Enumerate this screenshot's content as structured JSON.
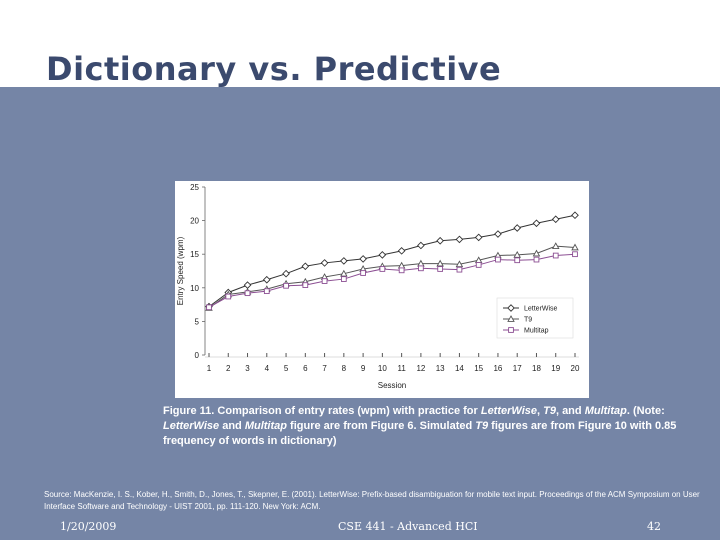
{
  "slide": {
    "title": "Dictionary vs. Predictive",
    "caption_parts": [
      "Figure 11. Comparison of entry rates (wpm) with practice for ",
      "LetterWise",
      ", ",
      "T9",
      ", and ",
      "Multitap",
      ". (Note: ",
      "LetterWise",
      " and ",
      "Multitap",
      " figure are from Figure 6. Simulated ",
      "T9",
      " figures are from Figure 10 with 0.85 frequency of words in dictionary)"
    ],
    "source": "Source: MacKenzie, I. S., Kober, H., Smith, D., Jones, T., Skepner, E. (2001). LetterWise: Prefix-based disambiguation for mobile text input. Proceedings of the ACM Symposium on User Interface Software and Technology - UIST 2001, pp. 111-120. New York: ACM.",
    "footer": {
      "date": "1/20/2009",
      "course": "CSE 441 - Advanced HCI",
      "page": "42"
    }
  },
  "chart_data": {
    "type": "line",
    "title": "",
    "xlabel": "Session",
    "ylabel": "Entry Speed (wpm)",
    "xlim": [
      1,
      20
    ],
    "ylim": [
      0,
      25
    ],
    "yticks": [
      0,
      5,
      10,
      15,
      20,
      25
    ],
    "x": [
      1,
      2,
      3,
      4,
      5,
      6,
      7,
      8,
      9,
      10,
      11,
      12,
      13,
      14,
      15,
      16,
      17,
      18,
      19,
      20
    ],
    "grid": false,
    "legend_position": "bottom-right",
    "series": [
      {
        "name": "LetterWise",
        "marker": "diamond",
        "color": "#333333",
        "values": [
          7.2,
          9.3,
          10.4,
          11.2,
          12.1,
          13.2,
          13.7,
          14.0,
          14.3,
          14.9,
          15.5,
          16.3,
          17.0,
          17.2,
          17.5,
          18.0,
          18.9,
          19.6,
          20.2,
          20.8
        ]
      },
      {
        "name": "T9",
        "marker": "triangle",
        "color": "#555555",
        "values": [
          7.0,
          9.0,
          9.4,
          9.8,
          10.6,
          10.9,
          11.6,
          12.1,
          12.8,
          13.2,
          13.3,
          13.6,
          13.6,
          13.5,
          14.1,
          14.8,
          14.9,
          15.1,
          16.2,
          16.0
        ]
      },
      {
        "name": "Multitap",
        "marker": "square",
        "color": "#8c4f93",
        "values": [
          7.1,
          8.7,
          9.2,
          9.5,
          10.3,
          10.4,
          11.0,
          11.3,
          12.2,
          12.8,
          12.6,
          12.9,
          12.8,
          12.7,
          13.4,
          14.2,
          14.1,
          14.2,
          14.8,
          15.0
        ]
      }
    ]
  }
}
